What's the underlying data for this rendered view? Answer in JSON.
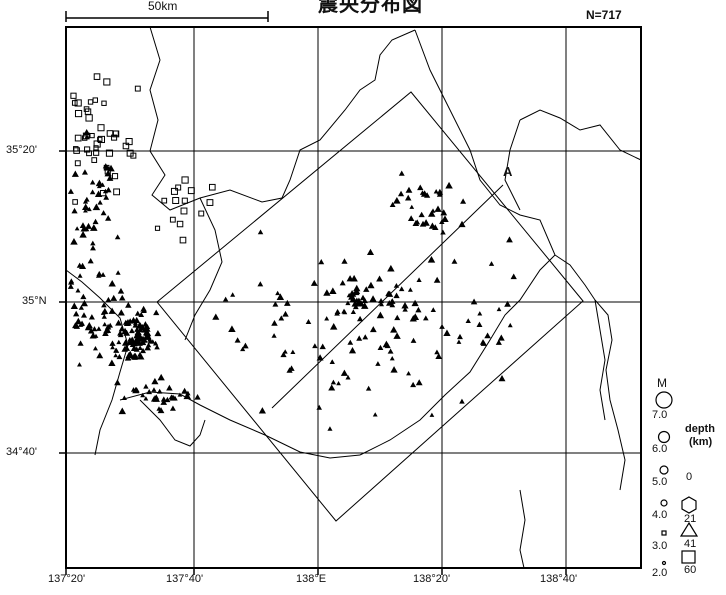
{
  "title": "震央分布図",
  "event_count": "N=717",
  "scale_bar": "50km",
  "axes": {
    "lon_ticks": [
      "137°20'",
      "137°40'",
      "138°E",
      "138°20'",
      "138°40'"
    ],
    "lat_ticks": [
      "35°20'",
      "35°N",
      "34°40'"
    ]
  },
  "profile_marker": "A",
  "legend": {
    "magnitude_title": "M",
    "magnitudes": [
      "7.0",
      "6.0",
      "5.0",
      "4.0",
      "3.0",
      "2.0"
    ],
    "depth_title": "depth",
    "depth_unit": "(km)",
    "depths": [
      "0",
      "21",
      "41",
      "60"
    ]
  }
}
